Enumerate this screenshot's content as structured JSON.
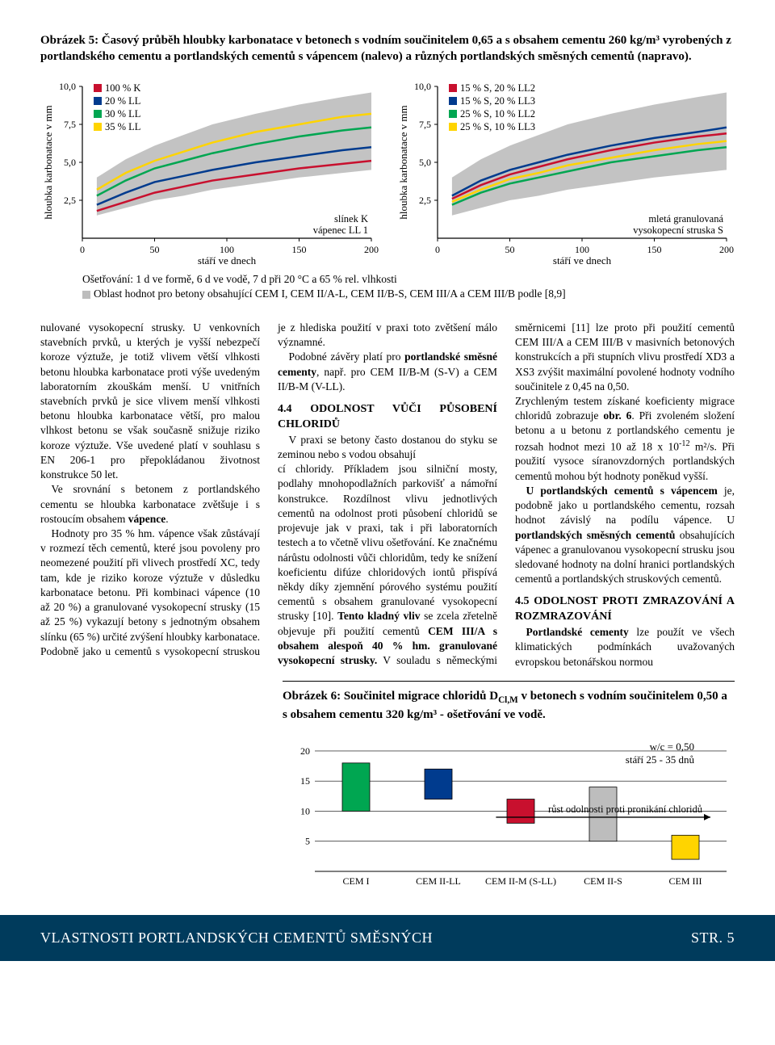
{
  "figure5": {
    "caption": "Obrázek 5: Časový průběh hloubky karbonatace v betonech s vodním součinitelem 0,65 a s obsahem cementu 260 kg/m³ vyrobených z portlandského cementu a portlandských cementů s vápencem (nalevo) a různých portlandských směsných cementů (napravo).",
    "y_axis_label": "hloubka karbonatace v mm",
    "x_axis_label": "stáří ve dnech",
    "y_ticks": [
      "2,5",
      "5,0",
      "7,5",
      "10,0"
    ],
    "x_ticks": [
      "0",
      "50",
      "100",
      "150",
      "200"
    ],
    "left": {
      "series": [
        {
          "name": "100 % K",
          "color": "#c8102e"
        },
        {
          "name": "20 % LL",
          "color": "#003b8e"
        },
        {
          "name": "30 % LL",
          "color": "#00a651"
        },
        {
          "name": "35 % LL",
          "color": "#ffd400"
        }
      ],
      "annotation": "slínek K\nvápenec LL 1",
      "band_color": "#bdbdbd",
      "data": {
        "x": [
          10,
          30,
          50,
          70,
          90,
          120,
          150,
          180,
          200
        ],
        "100 % K": [
          1.8,
          2.4,
          3.0,
          3.4,
          3.8,
          4.2,
          4.6,
          4.9,
          5.1
        ],
        "20 % LL": [
          2.2,
          3.0,
          3.7,
          4.1,
          4.5,
          5.0,
          5.4,
          5.8,
          6.0
        ],
        "30 % LL": [
          2.8,
          3.8,
          4.6,
          5.1,
          5.6,
          6.2,
          6.7,
          7.1,
          7.3
        ],
        "35 % LL": [
          3.2,
          4.3,
          5.1,
          5.7,
          6.3,
          7.0,
          7.5,
          8.0,
          8.2
        ],
        "band_lo": [
          1.5,
          2.0,
          2.5,
          2.8,
          3.2,
          3.6,
          4.0,
          4.3,
          4.5
        ],
        "band_hi": [
          4.0,
          5.2,
          6.1,
          6.8,
          7.5,
          8.2,
          8.8,
          9.3,
          9.6
        ]
      }
    },
    "right": {
      "series": [
        {
          "name": "15 % S, 20 % LL2",
          "color": "#c8102e"
        },
        {
          "name": "15 % S, 20 % LL3",
          "color": "#003b8e"
        },
        {
          "name": "25 % S, 10 % LL2",
          "color": "#00a651"
        },
        {
          "name": "25 % S, 10 % LL3",
          "color": "#ffd400"
        }
      ],
      "annotation": "mletá granulovaná\nvysokopecní struska S",
      "band_color": "#bdbdbd",
      "data": {
        "x": [
          10,
          30,
          50,
          70,
          90,
          120,
          150,
          180,
          200
        ],
        "15 % S, 20 % LL2": [
          2.6,
          3.5,
          4.2,
          4.7,
          5.2,
          5.8,
          6.3,
          6.7,
          6.9
        ],
        "15 % S, 20 % LL3": [
          2.8,
          3.8,
          4.5,
          5.0,
          5.5,
          6.1,
          6.6,
          7.0,
          7.3
        ],
        "25 % S, 10 % LL2": [
          2.2,
          3.0,
          3.6,
          4.0,
          4.4,
          5.0,
          5.4,
          5.8,
          6.0
        ],
        "25 % S, 10 % LL3": [
          2.4,
          3.2,
          3.9,
          4.3,
          4.8,
          5.3,
          5.8,
          6.2,
          6.4
        ],
        "band_lo": [
          1.5,
          2.0,
          2.5,
          2.8,
          3.2,
          3.6,
          4.0,
          4.3,
          4.5
        ],
        "band_hi": [
          4.0,
          5.2,
          6.1,
          6.8,
          7.5,
          8.2,
          8.8,
          9.3,
          9.6
        ]
      }
    },
    "note_curing": "Ošetřování: 1 d ve formě, 6 d ve vodě, 7 d při 20 °C a 65 % rel. vlhkosti",
    "note_band": "Oblast hodnot pro betony obsahující CEM I, CEM II/A-L, CEM II/B-S, CEM III/A a CEM III/B podle [8,9]"
  },
  "body": {
    "col1": {
      "p1": "nulované vysokopecní strusky. U venkovních stavebních prvků, u kterých je vyšší nebezpečí koroze výztuže, je totiž vlivem větší vlhkosti betonu hloubka karbonatace proti výše uvedeným laboratorním zkouškám menší. U vnitřních stavebních prvků je sice vlivem menší vlhkosti betonu hloubka karbonatace větší, pro malou vlhkost betonu se však současně snižuje riziko koroze výztuže. Vše uvedené platí v souhlasu s EN 206-1 pro přepokládanou životnost konstrukce 50 let.",
      "p2_a": "Ve srovnání s betonem z portlandského cementu se hloubka karbonatace zvětšuje i s rostoucím obsahem ",
      "p2_b": "vápence",
      "p2_c": ".",
      "p3": "Hodnoty pro 35 % hm. vápence však zůstávají v rozmezí těch cementů, které jsou povoleny pro neomezené použití při vlivech prostředí XC, tedy tam, kde je riziko koroze výztuže v důsledku karbonatace betonu. Při kombinaci vápence (10 až 20 %) a granulované vysokopecní strusky (15 až 25 %) vykazují betony s jednotným obsahem slínku (65 %) určité zvýšení hloubky karbonatace. Podobně jako u cementů s vysokopecní struskou je z hlediska použití v praxi toto zvětšení málo významné.",
      "p4_a": "Podobné závěry platí pro ",
      "p4_b": "portlandské směsné cementy",
      "p4_c": ", např. pro CEM II/B-M (S-V) a CEM II/B-M (V-LL).",
      "h44": "4.4 ODOLNOST VŮČI PŮSOBENÍ CHLORIDŮ",
      "p5": "V praxi se betony často dostanou do styku se zeminou nebo s vodou obsahují"
    },
    "col2": {
      "p1_a": "cí chloridy. Příkladem jsou silniční mosty, podlahy mnohopodlažních parkovišť a námořní konstrukce. Rozdílnost vlivu jednotlivých cementů na odolnost proti působení chloridů se projevuje jak v praxi, tak i při laboratorních testech a to včetně vlivu ošetřování. Ke značnému nárůstu odolnosti vůči chloridům, tedy ke snížení koeficientu difúze chloridových iontů přispívá někdy díky zjemnění pórového systému použití cementů s obsahem granulované vysokopecní strusky [10]. ",
      "p1_b": "Tento kladný vliv",
      "p1_c": " se zcela zřetelně objevuje při použití cementů ",
      "p1_d": "CEM III/A s obsahem alespoň 40 % hm. granulované vysokopecní strusky.",
      "p1_e": " V souladu s německými směrnicemi [11] lze proto při použití cementů CEM III/A a CEM III/B v masivních betonových konstrukcích a při stupních vlivu prostředí XD3 a XS3 zvýšit maximální povolené hodnoty vodního součinitele z 0,45 na 0,50."
    },
    "col3": {
      "p1_a": "Zrychleným testem získané koeficienty migrace chloridů zobrazuje ",
      "p1_b": "obr. 6",
      "p1_c": ". Při zvoleném složení betonu a u betonu z portlandského cementu je rozsah hodnot mezi 10 až 18 x 10",
      "p1_sup": "-12",
      "p1_d": " m²/s. Při použití vysoce síranovzdorných portlandských cementů mohou být hodnoty poněkud vyšší.",
      "p2_a": "U portlandských cementů s vápencem",
      "p2_b": " je, podobně jako u portlandského cementu, rozsah hodnot závislý na podílu vápence. U ",
      "p2_c": "portlandských směsných cementů",
      "p2_d": " obsahujících vápenec a granulovanou vysokopecní strusku jsou sledované hodnoty na dolní hranici portlandských cementů a portlandských struskových cementů.",
      "h45": "4.5 ODOLNOST PROTI ZMRAZOVÁNÍ A ROZMRAZOVÁNÍ",
      "p3_a": "Portlandské cementy",
      "p3_b": " lze použít ve všech klimatických podmínkách uvažovaných evropskou betonářskou normou"
    }
  },
  "figure6": {
    "caption_a": "Obrázek 6:  Součinitel migrace chloridů D",
    "caption_sub": "Cl,M",
    "caption_b": " v betonech s vodním součinitelem 0,50 a s obsahem cementu 320 kg/m³ - ošetřování ve vodě.",
    "y_ticks": [
      "5",
      "10",
      "15",
      "20"
    ],
    "ann_wc": "w/c = 0,50",
    "ann_age": "stáří 25 - 35 dnů",
    "ann_arrow": "růst odolnosti proti pronikání chloridů",
    "categories": [
      "CEM I",
      "CEM II-LL",
      "CEM II-M (S-LL)",
      "CEM II-S",
      "CEM III"
    ],
    "bars": [
      {
        "lo": 10,
        "hi": 18,
        "color": "#00a651"
      },
      {
        "lo": 12,
        "hi": 17,
        "color": "#003b8e"
      },
      {
        "lo": 8,
        "hi": 12,
        "color": "#c8102e"
      },
      {
        "lo": 5,
        "hi": 14,
        "color": "#bdbdbd"
      },
      {
        "lo": 2,
        "hi": 6,
        "color": "#ffd400"
      }
    ],
    "y_max": 22
  },
  "footer": {
    "title": "VLASTNOSTI PORTLANDSKÝCH CEMENTŮ SMĚSNÝCH",
    "page": "STR. 5"
  },
  "colors": {
    "footer_bg": "#003b5c",
    "grey_band": "#bdbdbd"
  }
}
